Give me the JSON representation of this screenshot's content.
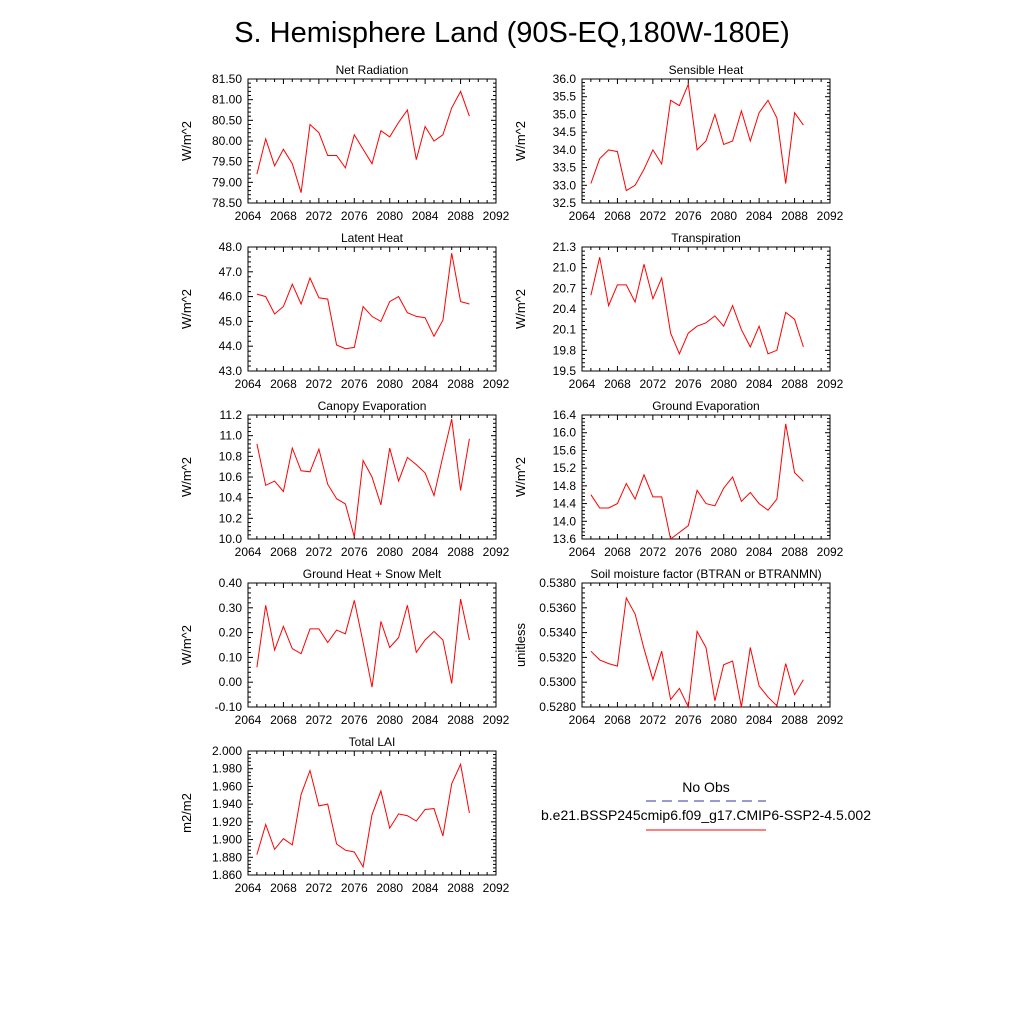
{
  "figure_title": "S. Hemisphere Land (90S-EQ,180W-180E)",
  "legend": {
    "obs_label": "No Obs",
    "obs_color": "#3333aa",
    "case_label": "b.e21.BSSP245cmip6.f09_g17.CMIP6-SSP2-4.5.002",
    "case_color": "#ff0000"
  },
  "chart_data": [
    {
      "type": "line",
      "title": "Net Radiation",
      "ylabel": "W/m^2",
      "xlim": [
        2064,
        2092
      ],
      "ylim": [
        78.5,
        81.5
      ],
      "yticks": [
        "78.50",
        "79.00",
        "79.50",
        "80.00",
        "80.50",
        "81.00",
        "81.50"
      ],
      "xticks": [
        "2064",
        "2068",
        "2072",
        "2076",
        "2080",
        "2084",
        "2088",
        "2092"
      ],
      "x": [
        2065,
        2066,
        2067,
        2068,
        2069,
        2070,
        2071,
        2072,
        2073,
        2074,
        2075,
        2076,
        2077,
        2078,
        2079,
        2080,
        2081,
        2082,
        2083,
        2084,
        2085,
        2086,
        2087,
        2088,
        2089
      ],
      "values": [
        79.2,
        80.05,
        79.4,
        79.8,
        79.45,
        78.75,
        80.4,
        80.2,
        79.65,
        79.65,
        79.35,
        80.15,
        79.8,
        79.45,
        80.25,
        80.1,
        80.45,
        80.75,
        79.55,
        80.35,
        80.0,
        80.15,
        80.8,
        81.2,
        80.6
      ]
    },
    {
      "type": "line",
      "title": "Sensible Heat",
      "ylabel": "W/m^2",
      "xlim": [
        2064,
        2092
      ],
      "ylim": [
        32.5,
        36.0
      ],
      "yticks": [
        "32.5",
        "33.0",
        "33.5",
        "34.0",
        "34.5",
        "35.0",
        "35.5",
        "36.0"
      ],
      "xticks": [
        "2064",
        "2068",
        "2072",
        "2076",
        "2080",
        "2084",
        "2088",
        "2092"
      ],
      "x": [
        2065,
        2066,
        2067,
        2068,
        2069,
        2070,
        2071,
        2072,
        2073,
        2074,
        2075,
        2076,
        2077,
        2078,
        2079,
        2080,
        2081,
        2082,
        2083,
        2084,
        2085,
        2086,
        2087,
        2088,
        2089
      ],
      "values": [
        33.05,
        33.75,
        34.0,
        33.95,
        32.85,
        33.0,
        33.45,
        34.0,
        33.6,
        35.4,
        35.25,
        35.85,
        34.0,
        34.25,
        35.0,
        34.15,
        34.25,
        35.1,
        34.25,
        35.05,
        35.4,
        34.9,
        33.05,
        35.05,
        34.7
      ]
    },
    {
      "type": "line",
      "title": "Latent Heat",
      "ylabel": "W/m^2",
      "xlim": [
        2064,
        2092
      ],
      "ylim": [
        43.0,
        48.0
      ],
      "yticks": [
        "43.0",
        "44.0",
        "45.0",
        "46.0",
        "47.0",
        "48.0"
      ],
      "xticks": [
        "2064",
        "2068",
        "2072",
        "2076",
        "2080",
        "2084",
        "2088",
        "2092"
      ],
      "x": [
        2065,
        2066,
        2067,
        2068,
        2069,
        2070,
        2071,
        2072,
        2073,
        2074,
        2075,
        2076,
        2077,
        2078,
        2079,
        2080,
        2081,
        2082,
        2083,
        2084,
        2085,
        2086,
        2087,
        2088,
        2089
      ],
      "values": [
        46.1,
        46.0,
        45.3,
        45.6,
        46.5,
        45.7,
        46.75,
        45.95,
        45.9,
        44.05,
        43.9,
        43.95,
        45.6,
        45.2,
        45.0,
        45.8,
        46.0,
        45.35,
        45.2,
        45.15,
        44.4,
        45.05,
        47.75,
        45.8,
        45.7
      ]
    },
    {
      "type": "line",
      "title": "Transpiration",
      "ylabel": "W/m^2",
      "xlim": [
        2064,
        2092
      ],
      "ylim": [
        19.5,
        21.3
      ],
      "yticks": [
        "19.5",
        "19.8",
        "20.1",
        "20.4",
        "20.7",
        "21.0",
        "21.3"
      ],
      "xticks": [
        "2064",
        "2068",
        "2072",
        "2076",
        "2080",
        "2084",
        "2088",
        "2092"
      ],
      "x": [
        2065,
        2066,
        2067,
        2068,
        2069,
        2070,
        2071,
        2072,
        2073,
        2074,
        2075,
        2076,
        2077,
        2078,
        2079,
        2080,
        2081,
        2082,
        2083,
        2084,
        2085,
        2086,
        2087,
        2088,
        2089
      ],
      "values": [
        20.6,
        21.15,
        20.45,
        20.75,
        20.75,
        20.5,
        21.05,
        20.55,
        20.85,
        20.05,
        19.75,
        20.05,
        20.15,
        20.2,
        20.3,
        20.15,
        20.45,
        20.1,
        19.85,
        20.15,
        19.75,
        19.8,
        20.35,
        20.25,
        19.85
      ]
    },
    {
      "type": "line",
      "title": "Canopy Evaporation",
      "ylabel": "W/m^2",
      "xlim": [
        2064,
        2092
      ],
      "ylim": [
        10.0,
        11.2
      ],
      "yticks": [
        "10.0",
        "10.2",
        "10.4",
        "10.6",
        "10.8",
        "11.0",
        "11.2"
      ],
      "xticks": [
        "2064",
        "2068",
        "2072",
        "2076",
        "2080",
        "2084",
        "2088",
        "2092"
      ],
      "x": [
        2065,
        2066,
        2067,
        2068,
        2069,
        2070,
        2071,
        2072,
        2073,
        2074,
        2075,
        2076,
        2077,
        2078,
        2079,
        2080,
        2081,
        2082,
        2083,
        2084,
        2085,
        2086,
        2087,
        2088,
        2089
      ],
      "values": [
        10.92,
        10.52,
        10.56,
        10.46,
        10.88,
        10.66,
        10.65,
        10.87,
        10.53,
        10.39,
        10.34,
        10.02,
        10.76,
        10.6,
        10.33,
        10.88,
        10.56,
        10.79,
        10.72,
        10.64,
        10.42,
        10.8,
        11.16,
        10.47,
        10.97
      ]
    },
    {
      "type": "line",
      "title": "Ground Evaporation",
      "ylabel": "W/m^2",
      "xlim": [
        2064,
        2092
      ],
      "ylim": [
        13.6,
        16.4
      ],
      "yticks": [
        "13.6",
        "14.0",
        "14.4",
        "14.8",
        "15.2",
        "15.6",
        "16.0",
        "16.4"
      ],
      "xticks": [
        "2064",
        "2068",
        "2072",
        "2076",
        "2080",
        "2084",
        "2088",
        "2092"
      ],
      "x": [
        2065,
        2066,
        2067,
        2068,
        2069,
        2070,
        2071,
        2072,
        2073,
        2074,
        2075,
        2076,
        2077,
        2078,
        2079,
        2080,
        2081,
        2082,
        2083,
        2084,
        2085,
        2086,
        2087,
        2088,
        2089
      ],
      "values": [
        14.6,
        14.3,
        14.3,
        14.4,
        14.85,
        14.5,
        15.05,
        14.55,
        14.55,
        13.6,
        13.75,
        13.9,
        14.7,
        14.4,
        14.35,
        14.75,
        15.0,
        14.45,
        14.65,
        14.4,
        14.25,
        14.5,
        16.2,
        15.1,
        14.9
      ]
    },
    {
      "type": "line",
      "title": "Ground Heat + Snow Melt",
      "ylabel": "W/m^2",
      "xlim": [
        2064,
        2092
      ],
      "ylim": [
        -0.1,
        0.4
      ],
      "yticks": [
        "-0.10",
        "0.00",
        "0.10",
        "0.20",
        "0.30",
        "0.40"
      ],
      "xticks": [
        "2064",
        "2068",
        "2072",
        "2076",
        "2080",
        "2084",
        "2088",
        "2092"
      ],
      "x": [
        2065,
        2066,
        2067,
        2068,
        2069,
        2070,
        2071,
        2072,
        2073,
        2074,
        2075,
        2076,
        2077,
        2078,
        2079,
        2080,
        2081,
        2082,
        2083,
        2084,
        2085,
        2086,
        2087,
        2088,
        2089
      ],
      "values": [
        0.06,
        0.31,
        0.13,
        0.225,
        0.135,
        0.115,
        0.215,
        0.215,
        0.16,
        0.21,
        0.195,
        0.33,
        0.16,
        -0.02,
        0.245,
        0.14,
        0.18,
        0.31,
        0.12,
        0.17,
        0.205,
        0.17,
        -0.005,
        0.335,
        0.17
      ]
    },
    {
      "type": "line",
      "title": "Soil moisture factor (BTRAN or BTRANMN)",
      "ylabel": "unitless",
      "xlim": [
        2064,
        2092
      ],
      "ylim": [
        0.528,
        0.538
      ],
      "yticks": [
        "0.5280",
        "0.5300",
        "0.5320",
        "0.5340",
        "0.5360",
        "0.5380"
      ],
      "xticks": [
        "2064",
        "2068",
        "2072",
        "2076",
        "2080",
        "2084",
        "2088",
        "2092"
      ],
      "x": [
        2065,
        2066,
        2067,
        2068,
        2069,
        2070,
        2071,
        2072,
        2073,
        2074,
        2075,
        2076,
        2077,
        2078,
        2079,
        2080,
        2081,
        2082,
        2083,
        2084,
        2085,
        2086,
        2087,
        2088,
        2089
      ],
      "values": [
        0.5325,
        0.5318,
        0.5315,
        0.5313,
        0.5368,
        0.5355,
        0.5327,
        0.5302,
        0.5325,
        0.5286,
        0.5295,
        0.528,
        0.5341,
        0.5328,
        0.5285,
        0.5314,
        0.5317,
        0.528,
        0.5328,
        0.5297,
        0.5288,
        0.5281,
        0.5315,
        0.529,
        0.5302
      ]
    },
    {
      "type": "line",
      "title": "Total LAI",
      "ylabel": "m2/m2",
      "xlim": [
        2064,
        2092
      ],
      "ylim": [
        1.86,
        2.0
      ],
      "yticks": [
        "1.860",
        "1.880",
        "1.900",
        "1.920",
        "1.940",
        "1.960",
        "1.980",
        "2.000"
      ],
      "xticks": [
        "2064",
        "2068",
        "2072",
        "2076",
        "2080",
        "2084",
        "2088",
        "2092"
      ],
      "x": [
        2065,
        2066,
        2067,
        2068,
        2069,
        2070,
        2071,
        2072,
        2073,
        2074,
        2075,
        2076,
        2077,
        2078,
        2079,
        2080,
        2081,
        2082,
        2083,
        2084,
        2085,
        2086,
        2087,
        2088,
        2089
      ],
      "values": [
        1.883,
        1.917,
        1.889,
        1.901,
        1.894,
        1.951,
        1.978,
        1.938,
        1.94,
        1.895,
        1.888,
        1.886,
        1.869,
        1.928,
        1.955,
        1.913,
        1.929,
        1.927,
        1.921,
        1.934,
        1.935,
        1.904,
        1.963,
        1.985,
        1.93
      ]
    }
  ]
}
